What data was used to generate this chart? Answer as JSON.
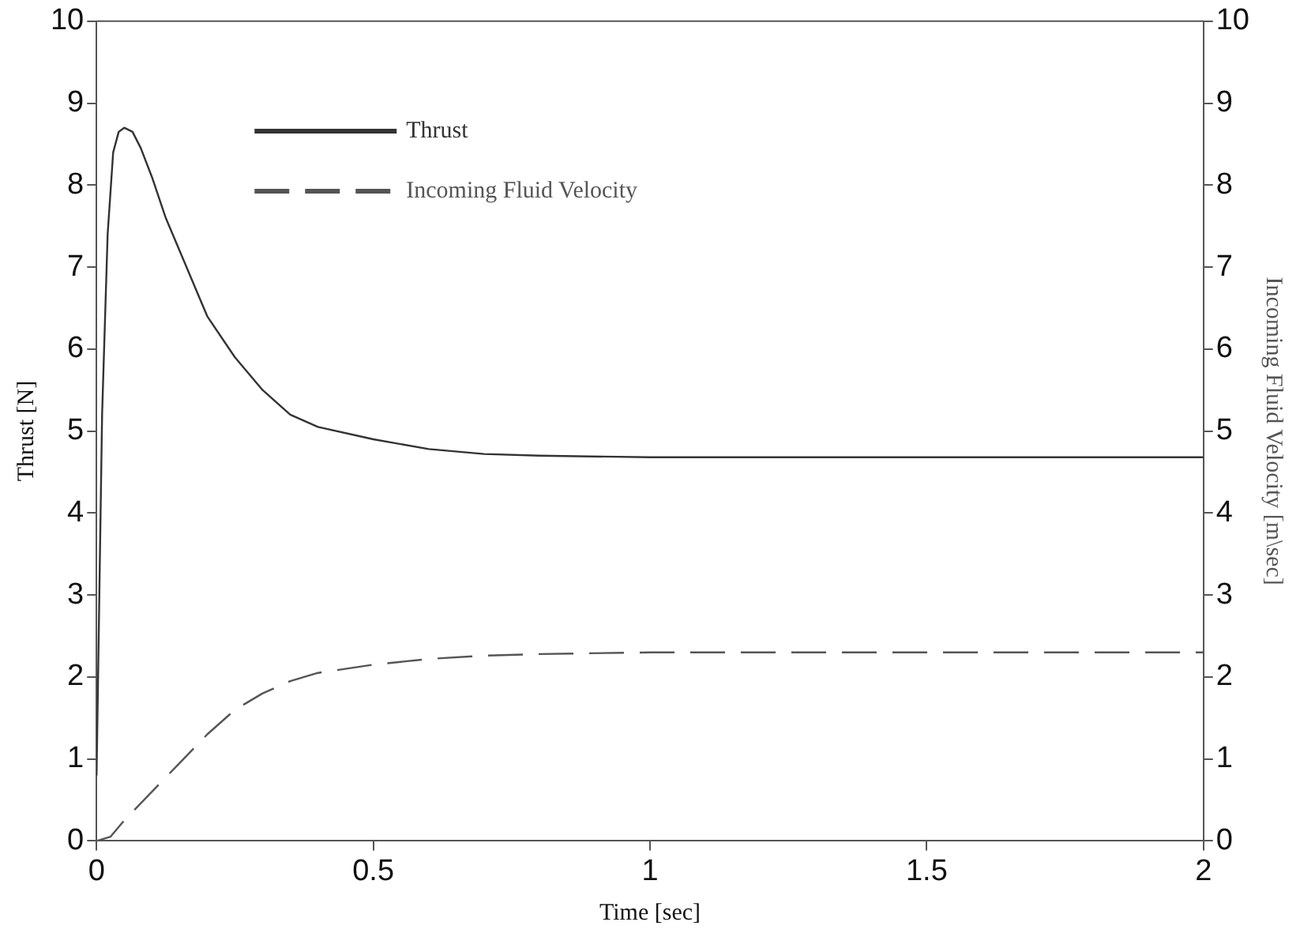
{
  "chart_data": {
    "type": "line",
    "xlabel": "Time [sec]",
    "ylabel": "Thrust [N]",
    "y2label": "Incoming Fluid Velocity [m\\sec]",
    "xlim": [
      0,
      2
    ],
    "xticks": [
      0,
      0.5,
      1,
      1.5,
      2
    ],
    "ylim": [
      0,
      10
    ],
    "yticks": [
      0,
      1,
      2,
      3,
      4,
      5,
      6,
      7,
      8,
      9,
      10
    ],
    "y2lim": [
      0,
      10
    ],
    "y2ticks": [
      0,
      1,
      2,
      3,
      4,
      5,
      6,
      7,
      8,
      9,
      10
    ],
    "grid": false,
    "legend": "top left",
    "marker": "none",
    "series": [
      {
        "name": "Thrust",
        "color": "#333333",
        "line_style": "solid",
        "x": [
          0,
          0.005,
          0.01,
          0.02,
          0.03,
          0.04,
          0.05,
          0.065,
          0.08,
          0.1,
          0.125,
          0.15,
          0.2,
          0.25,
          0.3,
          0.35,
          0.4,
          0.5,
          0.6,
          0.7,
          0.8,
          1,
          1.5,
          2
        ],
        "values": [
          0.8,
          3,
          5.2,
          7.4,
          8.4,
          8.65,
          8.7,
          8.65,
          8.45,
          8.1,
          7.6,
          7.2,
          6.4,
          5.9,
          5.5,
          5.2,
          5.05,
          4.9,
          4.78,
          4.72,
          4.7,
          4.68,
          4.68,
          4.68
        ]
      },
      {
        "name": "Incoming Fluid Velocity",
        "color": "#555555",
        "line_style": "dashed",
        "axis": "y2",
        "x": [
          0,
          0.025,
          0.05,
          0.1,
          0.15,
          0.2,
          0.25,
          0.3,
          0.35,
          0.4,
          0.5,
          0.6,
          0.7,
          0.8,
          1,
          1.5,
          2
        ],
        "values": [
          0,
          0.05,
          0.25,
          0.6,
          0.95,
          1.3,
          1.6,
          1.8,
          1.95,
          2.05,
          2.15,
          2.22,
          2.26,
          2.28,
          2.3,
          2.3,
          2.3
        ]
      }
    ]
  }
}
